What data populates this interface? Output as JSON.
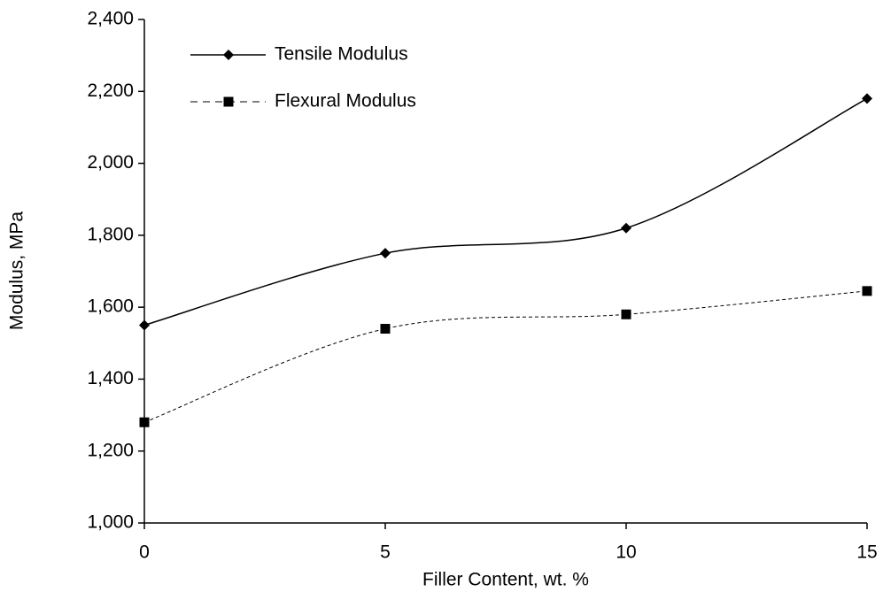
{
  "chart_data": {
    "type": "line",
    "x_label": "Filler Content, wt. %",
    "y_label": "Modulus, MPa",
    "x": [
      0,
      5,
      10,
      15
    ],
    "xlim": [
      0,
      15
    ],
    "xticks": [
      0,
      5,
      10,
      15
    ],
    "ylim": [
      1000,
      2400
    ],
    "yticks": [
      {
        "value": 1000,
        "label": "1,000"
      },
      {
        "value": 1200,
        "label": "1,200"
      },
      {
        "value": 1400,
        "label": "1,400"
      },
      {
        "value": 1600,
        "label": "1,600"
      },
      {
        "value": 1800,
        "label": "1,800"
      },
      {
        "value": 2000,
        "label": "2,000"
      },
      {
        "value": 2200,
        "label": "2,200"
      },
      {
        "value": 2400,
        "label": "2,400"
      }
    ],
    "grid": false,
    "legend": "upper left",
    "series": [
      {
        "name": "Tensile Modulus",
        "color": "#000000",
        "line_style": "solid",
        "marker": "diamond",
        "values": [
          1550,
          1750,
          1820,
          2180
        ]
      },
      {
        "name": "Flexural Modulus",
        "color": "#000000",
        "line_style": "dashed",
        "marker": "square",
        "values": [
          1280,
          1540,
          1580,
          1645
        ]
      }
    ]
  }
}
